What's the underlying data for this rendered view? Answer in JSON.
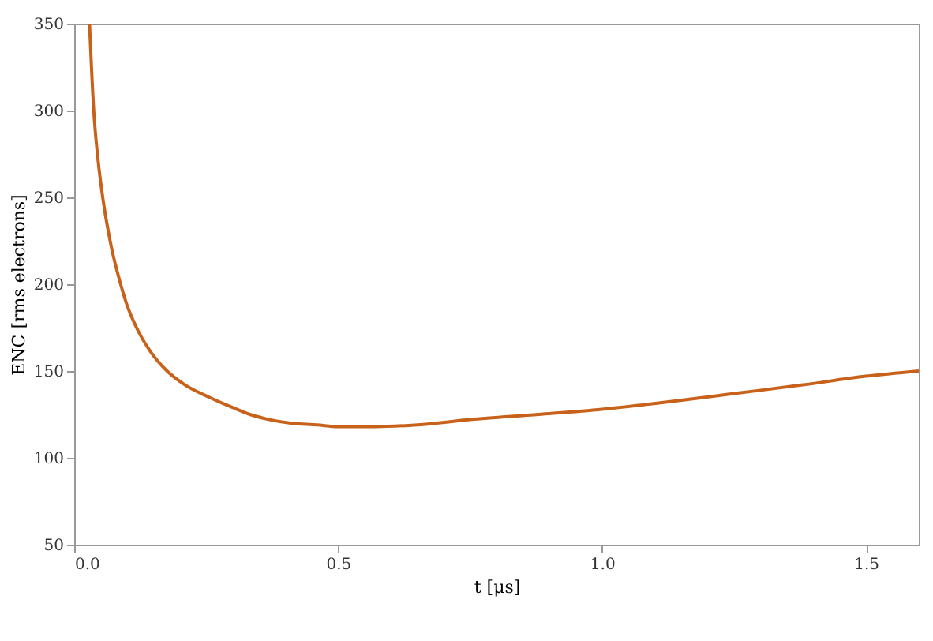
{
  "chart_data": {
    "type": "line",
    "xlabel": "t [μs]",
    "ylabel": "ENC [rms electrons]",
    "x": [
      0.029,
      0.037,
      0.045,
      0.054,
      0.07,
      0.088,
      0.1,
      0.118,
      0.145,
      0.176,
      0.21,
      0.255,
      0.3,
      0.333,
      0.37,
      0.41,
      0.46,
      0.5,
      0.57,
      0.65,
      0.75,
      0.88,
      1.0,
      1.12,
      1.25,
      1.38,
      1.5,
      1.6
    ],
    "series": [
      {
        "color": "#c8621a",
        "values": [
          350,
          300,
          272,
          250,
          222,
          200,
          188,
          175,
          161,
          150,
          142,
          135,
          129,
          125,
          122,
          120,
          119,
          118,
          118,
          119,
          122,
          125,
          128,
          132,
          137,
          142,
          147,
          150
        ]
      }
    ],
    "xlim": [
      0,
      1.6
    ],
    "ylim": [
      50,
      350
    ],
    "xticks": [
      {
        "value": 0,
        "label": "0.0"
      },
      0.5,
      {
        "value": 1,
        "label": "1.0"
      },
      1.5
    ],
    "yticks": [
      50,
      100,
      150,
      200,
      250,
      300,
      350
    ],
    "grid": false,
    "marker": "none",
    "line_style": "solid"
  }
}
